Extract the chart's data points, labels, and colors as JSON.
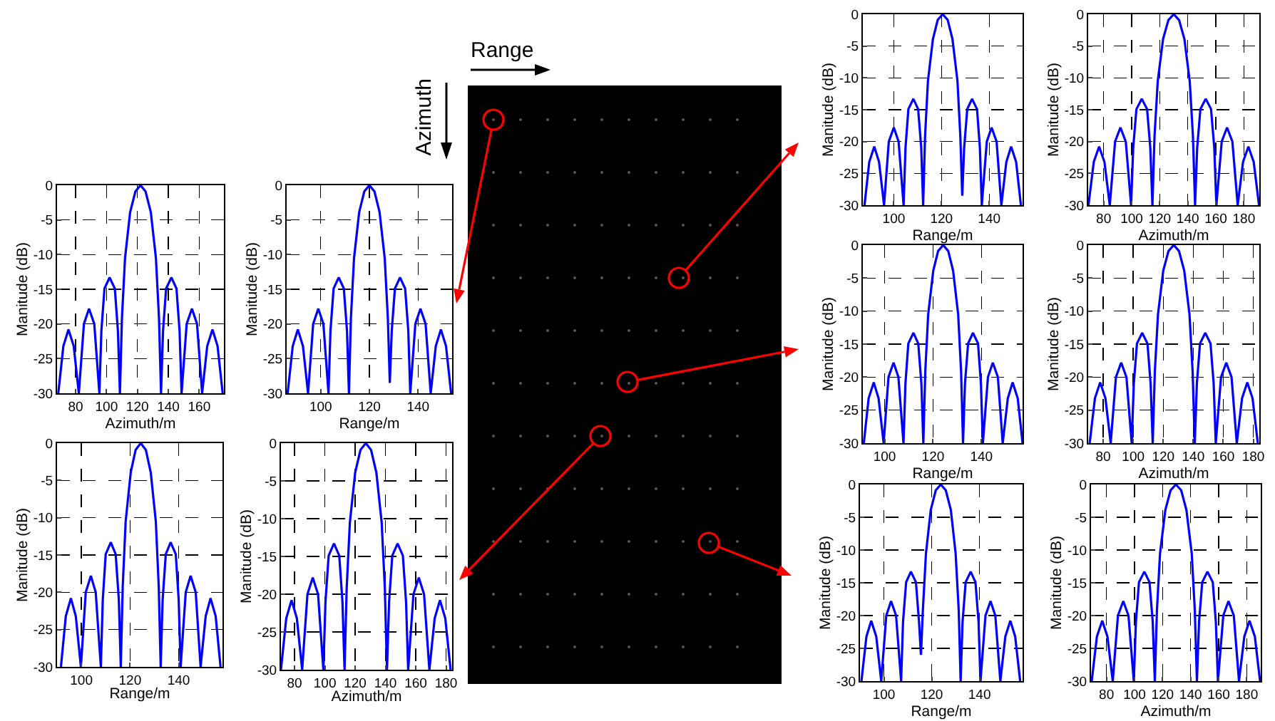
{
  "chart_data": [
    {
      "type": "line",
      "xlabel": "Azimuth/m",
      "ylabel": "Manitude (dB)",
      "xlim": [
        68,
        176
      ],
      "ylim": [
        -30,
        0
      ],
      "xticks": [
        80,
        100,
        120,
        140,
        160
      ],
      "yticks": [
        -30,
        -25,
        -20,
        -15,
        -10,
        -5,
        0
      ],
      "grid": true,
      "x": [
        68.8,
        72.1,
        75.4,
        78.8,
        82.1,
        85.4,
        88.7,
        92.1,
        95.4,
        96.7,
        98.7,
        102,
        105.4,
        107.4,
        108.7,
        110,
        112,
        115.3,
        118.7,
        122,
        125.3,
        128.7,
        132,
        134,
        135.3,
        136.6,
        138.6,
        142,
        145.3,
        147.3,
        148.6,
        151.9,
        155.3,
        158.6,
        161.9,
        165.2,
        168.6,
        171.9,
        175.2
      ],
      "series": [
        {
          "color": "#0000ff",
          "values": [
            -30,
            -23.2,
            -20.8,
            -23.2,
            -30,
            -20,
            -17.8,
            -20,
            -30,
            -21,
            -14.9,
            -13.3,
            -14.9,
            -21,
            -30,
            -19.2,
            -10.5,
            -3.9,
            -0.9,
            0,
            -0.9,
            -3.9,
            -10.5,
            -19.2,
            -30,
            -21,
            -14.9,
            -13.3,
            -14.9,
            -21,
            -30,
            -20,
            -17.8,
            -20,
            -30,
            -23.2,
            -20.8,
            -23.2,
            -30
          ]
        }
      ]
    },
    {
      "type": "line",
      "xlabel": "Range/m",
      "ylabel": "Manitude (dB)",
      "xlim": [
        86,
        154
      ],
      "ylim": [
        -30,
        0
      ],
      "xticks": [
        100,
        120,
        140
      ],
      "yticks": [
        -30,
        -25,
        -20,
        -15,
        -10,
        -5,
        0
      ],
      "grid": true,
      "x": [
        86.4,
        88.5,
        90.6,
        92.7,
        94.8,
        96.9,
        99,
        101.1,
        103.2,
        104,
        105.3,
        107.4,
        109.5,
        110.8,
        111.6,
        112.4,
        113.7,
        115.8,
        117.9,
        120,
        122.1,
        124.2,
        126.3,
        127.6,
        128.4,
        129.2,
        130.5,
        132.6,
        134.7,
        136,
        136.8,
        138.9,
        141,
        143.1,
        145.2,
        147.3,
        149.4,
        151.5,
        153.6
      ],
      "series": [
        {
          "color": "#0000ff",
          "values": [
            -30,
            -23.2,
            -20.8,
            -23.2,
            -30,
            -20,
            -17.8,
            -20,
            -30,
            -21,
            -14.9,
            -13.3,
            -14.9,
            -21,
            -30,
            -19.2,
            -10.5,
            -3.9,
            -0.9,
            0,
            -0.9,
            -3.9,
            -10.5,
            -19.2,
            -28.5,
            -21,
            -14.9,
            -13.3,
            -14.9,
            -21,
            -30,
            -20,
            -17.8,
            -20,
            -30,
            -23.2,
            -20.8,
            -23.2,
            -30
          ]
        }
      ]
    },
    {
      "type": "line",
      "xlabel": "Range/m",
      "ylabel": "Manitude (dB)",
      "xlim": [
        90,
        158
      ],
      "ylim": [
        -30,
        0
      ],
      "xticks": [
        100,
        120,
        140
      ],
      "yticks": [
        -30,
        -25,
        -20,
        -15,
        -10,
        -5,
        0
      ],
      "grid": true,
      "x": [
        91.6,
        93.6,
        95.7,
        97.7,
        99.8,
        101.8,
        103.9,
        105.9,
        108,
        108.8,
        110,
        112.1,
        114.1,
        115.4,
        116.2,
        117,
        118.2,
        120.3,
        122.3,
        124.4,
        126.5,
        128.5,
        130.6,
        131.8,
        132.6,
        133.4,
        134.7,
        136.7,
        138.8,
        140,
        140.8,
        142.9,
        144.9,
        147,
        149,
        151.1,
        153.1,
        155.2,
        157.2
      ],
      "series": [
        {
          "color": "#0000ff",
          "values": [
            -30,
            -23.2,
            -20.8,
            -23.2,
            -30,
            -20,
            -17.8,
            -20,
            -30,
            -21,
            -14.9,
            -13.3,
            -14.9,
            -21,
            -30,
            -19.2,
            -10.5,
            -3.9,
            -0.9,
            0,
            -0.9,
            -3.9,
            -10.5,
            -19.2,
            -30,
            -21,
            -14.9,
            -13.3,
            -14.9,
            -21,
            -30,
            -20,
            -17.8,
            -20,
            -30,
            -23.2,
            -20.8,
            -23.2,
            -30
          ]
        }
      ]
    },
    {
      "type": "line",
      "xlabel": "Azimuth/m",
      "ylabel": "Manitude (dB)",
      "xlim": [
        71,
        184
      ],
      "ylim": [
        -30,
        0
      ],
      "xticks": [
        80,
        100,
        120,
        140,
        160,
        180
      ],
      "yticks": [
        -30,
        -25,
        -20,
        -15,
        -10,
        -5,
        0
      ],
      "grid": true,
      "x": [
        71,
        74.5,
        78,
        81.5,
        85,
        88.5,
        92,
        95.5,
        99,
        100.4,
        102.5,
        106,
        109.5,
        111.6,
        113,
        114.4,
        116.5,
        120,
        123.5,
        127,
        130.5,
        134,
        137.5,
        139.6,
        141,
        142.4,
        144.5,
        148,
        151.5,
        153.6,
        155,
        158.5,
        162,
        165.5,
        169,
        172.5,
        176,
        179.5,
        183
      ],
      "series": [
        {
          "color": "#0000ff",
          "values": [
            -30,
            -23.2,
            -20.8,
            -23.2,
            -30,
            -20,
            -17.8,
            -20,
            -30,
            -21,
            -14.9,
            -13.3,
            -14.9,
            -21,
            -30,
            -19.2,
            -10.5,
            -3.9,
            -0.9,
            0,
            -0.9,
            -3.9,
            -10.5,
            -19.2,
            -30,
            -21,
            -14.9,
            -13.3,
            -14.9,
            -21,
            -30,
            -20,
            -17.8,
            -20,
            -30,
            -23.2,
            -20.8,
            -23.2,
            -30
          ]
        }
      ]
    },
    {
      "type": "line",
      "xlabel": "Range/m",
      "ylabel": "Manitude (dB)",
      "xlim": [
        87,
        154
      ],
      "ylim": [
        -30,
        0
      ],
      "xticks": [
        100,
        120,
        140
      ],
      "yticks": [
        -30,
        -25,
        -20,
        -15,
        -10,
        -5,
        0
      ],
      "grid": true,
      "x": [
        87.7,
        89.7,
        91.8,
        93.8,
        95.9,
        97.9,
        100,
        102,
        104.1,
        104.9,
        106.1,
        108.2,
        110.2,
        111.5,
        112.3,
        113.1,
        114.3,
        116.4,
        118.4,
        120.5,
        122.6,
        124.6,
        126.7,
        127.9,
        128.7,
        129.5,
        130.8,
        132.8,
        134.9,
        136.1,
        136.9,
        139,
        141,
        143.1,
        145.1,
        147.2,
        149.2,
        151.3,
        153.3
      ],
      "series": [
        {
          "color": "#0000ff",
          "values": [
            -30,
            -23.2,
            -20.8,
            -23.2,
            -30,
            -20,
            -17.8,
            -20,
            -30,
            -21,
            -14.9,
            -13.3,
            -14.9,
            -21,
            -30,
            -19.2,
            -10.5,
            -3.9,
            -0.9,
            0,
            -0.9,
            -3.9,
            -10.5,
            -19.2,
            -28.5,
            -21,
            -14.9,
            -13.3,
            -14.9,
            -21,
            -30,
            -20,
            -17.8,
            -20,
            -30,
            -23.2,
            -20.8,
            -23.2,
            -30
          ]
        }
      ]
    },
    {
      "type": "line",
      "xlabel": "Azimuth/m",
      "ylabel": "Manitude (dB)",
      "xlim": [
        69,
        191
      ],
      "ylim": [
        -30,
        0
      ],
      "xticks": [
        80,
        100,
        120,
        140,
        160,
        180
      ],
      "yticks": [
        -30,
        -25,
        -20,
        -15,
        -10,
        -5,
        0
      ],
      "grid": true,
      "x": [
        69.2,
        73,
        76.8,
        80.6,
        84.4,
        88.2,
        92,
        95.8,
        99.6,
        101.1,
        103.4,
        107.2,
        111,
        113.3,
        114.8,
        116.3,
        118.6,
        122.4,
        126.2,
        130,
        133.8,
        137.6,
        141.4,
        143.7,
        145.2,
        146.7,
        149,
        152.8,
        156.6,
        158.9,
        160.4,
        164.2,
        168,
        171.8,
        175.6,
        179.4,
        183.2,
        187,
        190.8
      ],
      "series": [
        {
          "color": "#0000ff",
          "values": [
            -30,
            -23.2,
            -20.8,
            -23.2,
            -30,
            -20,
            -17.8,
            -20,
            -30,
            -21,
            -14.9,
            -13.3,
            -14.9,
            -21,
            -30,
            -19.2,
            -10.5,
            -3.9,
            -0.9,
            0,
            -0.9,
            -3.9,
            -10.5,
            -19.2,
            -30,
            -21,
            -14.9,
            -13.3,
            -14.9,
            -21,
            -30,
            -20,
            -17.8,
            -20,
            -30,
            -23.2,
            -20.8,
            -23.2,
            -30
          ]
        }
      ]
    },
    {
      "type": "line",
      "xlabel": "Range/m",
      "ylabel": "Manitude (dB)",
      "xlim": [
        91,
        157
      ],
      "ylim": [
        -30,
        0
      ],
      "xticks": [
        100,
        120,
        140
      ],
      "yticks": [
        -30,
        -25,
        -20,
        -15,
        -10,
        -5,
        0
      ],
      "grid": true,
      "x": [
        91.4,
        93.4,
        95.5,
        97.5,
        99.6,
        101.6,
        103.7,
        105.7,
        107.8,
        108.6,
        109.8,
        111.9,
        113.9,
        115.2,
        116,
        116.8,
        118,
        120.1,
        122.1,
        124.2,
        126.3,
        128.3,
        130.4,
        131.6,
        132.4,
        133.2,
        134.5,
        136.5,
        138.6,
        139.8,
        140.6,
        142.7,
        144.7,
        146.8,
        148.8,
        150.9,
        152.9,
        155,
        157
      ],
      "series": [
        {
          "color": "#0000ff",
          "values": [
            -30,
            -23.2,
            -20.8,
            -23.2,
            -30,
            -20,
            -17.8,
            -20,
            -30,
            -21,
            -14.9,
            -13.3,
            -14.9,
            -21,
            -30,
            -19.2,
            -10.5,
            -3.9,
            -0.9,
            0,
            -0.9,
            -3.9,
            -10.5,
            -19.2,
            -30,
            -21,
            -14.9,
            -13.3,
            -14.9,
            -21,
            -30,
            -20,
            -17.8,
            -20,
            -30,
            -23.2,
            -20.8,
            -23.2,
            -30
          ]
        }
      ]
    },
    {
      "type": "line",
      "xlabel": "Azimuth/m",
      "ylabel": "Manitude (dB)",
      "xlim": [
        70,
        184
      ],
      "ylim": [
        -30,
        0
      ],
      "xticks": [
        80,
        100,
        120,
        140,
        160,
        180
      ],
      "yticks": [
        -30,
        -25,
        -20,
        -15,
        -10,
        -5,
        0
      ],
      "grid": true,
      "x": [
        71,
        74.5,
        78,
        81.5,
        85,
        88.5,
        92,
        95.5,
        99,
        100.4,
        102.5,
        106,
        109.5,
        111.6,
        113,
        114.4,
        116.5,
        120,
        123.5,
        127,
        130.5,
        134,
        137.5,
        139.6,
        141,
        142.4,
        144.5,
        148,
        151.5,
        153.6,
        155,
        158.5,
        162,
        165.5,
        169,
        172.5,
        176,
        179.5,
        183
      ],
      "series": [
        {
          "color": "#0000ff",
          "values": [
            -30,
            -23.2,
            -20.8,
            -23.2,
            -30,
            -20,
            -17.8,
            -20,
            -30,
            -21,
            -14.9,
            -13.3,
            -14.9,
            -21,
            -30,
            -19.2,
            -10.5,
            -3.9,
            -0.9,
            0,
            -0.9,
            -3.9,
            -10.5,
            -19.2,
            -30,
            -21,
            -14.9,
            -13.3,
            -14.9,
            -21,
            -30,
            -20,
            -17.8,
            -20,
            -30,
            -23.2,
            -20.8,
            -23.2,
            -30
          ]
        }
      ]
    },
    {
      "type": "line",
      "xlabel": "Range/m",
      "ylabel": "Manitude (dB)",
      "xlim": [
        90,
        158
      ],
      "ylim": [
        -30,
        0
      ],
      "xticks": [
        100,
        120,
        140
      ],
      "yticks": [
        -30,
        -25,
        -20,
        -15,
        -10,
        -5,
        0
      ],
      "grid": true,
      "x": [
        90.6,
        92.7,
        94.7,
        96.8,
        98.9,
        101,
        103,
        105.1,
        107.2,
        108,
        109.3,
        111.3,
        113.4,
        114.7,
        115.5,
        116.3,
        117.6,
        119.6,
        121.7,
        123.8,
        125.9,
        128,
        130,
        131.3,
        132.1,
        132.9,
        134.2,
        136.3,
        138.3,
        139.6,
        140.4,
        142.5,
        144.6,
        146.6,
        148.7,
        150.8,
        152.9,
        154.9,
        157
      ],
      "series": [
        {
          "color": "#0000ff",
          "values": [
            -30,
            -23.2,
            -20.8,
            -23.2,
            -30,
            -20,
            -17.8,
            -20,
            -30,
            -21,
            -14.9,
            -13.3,
            -14.9,
            -21,
            -26,
            -19.2,
            -10.5,
            -3.9,
            -0.9,
            0,
            -0.9,
            -3.9,
            -10.5,
            -19.2,
            -30,
            -21,
            -14.9,
            -13.3,
            -14.9,
            -21,
            -30,
            -20,
            -17.8,
            -20,
            -30,
            -23.2,
            -20.8,
            -23.2,
            -30
          ]
        }
      ]
    },
    {
      "type": "line",
      "xlabel": "Azimuth/m",
      "ylabel": "Manitude (dB)",
      "xlim": [
        69,
        190
      ],
      "ylim": [
        -30,
        0
      ],
      "xticks": [
        80,
        100,
        120,
        140,
        160,
        180
      ],
      "yticks": [
        -30,
        -25,
        -20,
        -15,
        -10,
        -5,
        0
      ],
      "grid": true,
      "x": [
        69.5,
        73.2,
        77,
        80.7,
        84.5,
        88.2,
        92,
        95.7,
        99.5,
        101,
        103.2,
        107,
        110.7,
        113,
        114.5,
        116,
        118.2,
        122,
        125.7,
        129.5,
        133.3,
        137,
        140.8,
        143,
        144.5,
        146,
        148.3,
        152,
        155.8,
        158,
        159.5,
        163.3,
        167,
        170.8,
        174.5,
        178.3,
        182,
        185.8,
        189.5
      ],
      "series": [
        {
          "color": "#0000ff",
          "values": [
            -30,
            -23.2,
            -20.8,
            -23.2,
            -30,
            -20,
            -17.8,
            -20,
            -30,
            -21,
            -14.9,
            -13.3,
            -14.9,
            -21,
            -30,
            -19.2,
            -10.5,
            -3.9,
            -0.9,
            0,
            -0.9,
            -3.9,
            -10.5,
            -19.2,
            -30,
            -21,
            -14.9,
            -13.3,
            -14.9,
            -21,
            -30,
            -20,
            -17.8,
            -20,
            -30,
            -23.2,
            -20.8,
            -23.2,
            -30
          ]
        }
      ]
    },
    {
      "type": "other",
      "annotations": [
        "Range",
        "Azimuth"
      ]
    }
  ]
}
